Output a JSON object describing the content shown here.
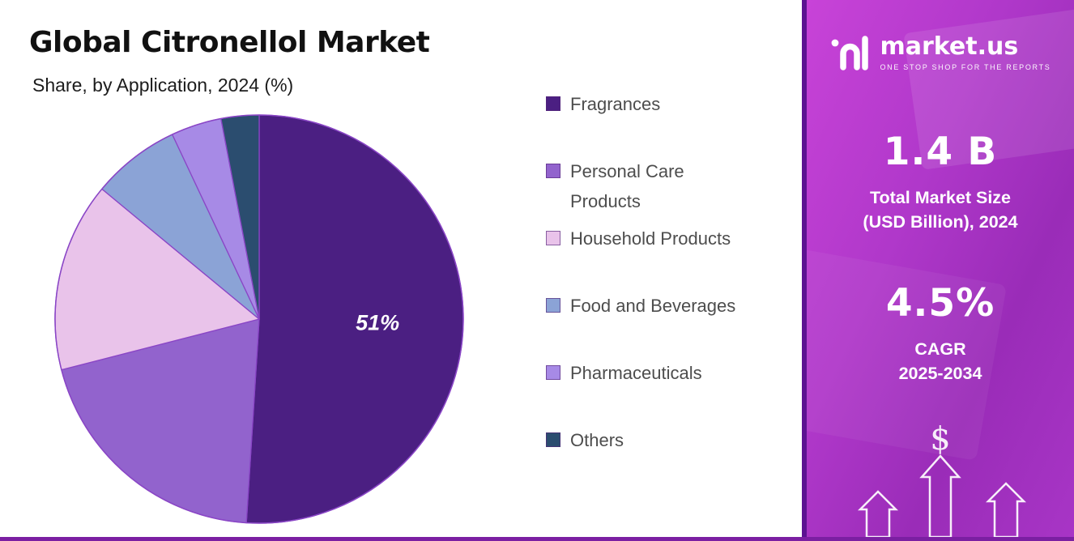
{
  "header": {
    "title": "Global Citronellol Market",
    "subtitle": "Share, by Application, 2024 (%)"
  },
  "chart_data": {
    "type": "pie",
    "title": "Global Citronellol Market",
    "subtitle": "Share, by Application, 2024 (%)",
    "unit": "%",
    "direction": "clockwise",
    "start_angle_deg": 0,
    "legend_position": "right",
    "slices": [
      {
        "label": "Fragrances",
        "value": 51,
        "color": "#4b1f82",
        "callout": "51%"
      },
      {
        "label": "Personal Care Products",
        "value": 20,
        "color": "#9263cd"
      },
      {
        "label": "Household Products",
        "value": 15,
        "color": "#e9c3ea"
      },
      {
        "label": "Food and Beverages",
        "value": 7,
        "color": "#8ba3d6"
      },
      {
        "label": "Pharmaceuticals",
        "value": 4,
        "color": "#a78ae6"
      },
      {
        "label": "Others",
        "value": 3,
        "color": "#2b4d6f"
      }
    ],
    "style": {
      "slice_stroke": "#8a46c6",
      "callout_color": "#ffffff"
    }
  },
  "sidebar": {
    "brand": {
      "name": "market.us",
      "tagline": "ONE STOP SHOP FOR THE REPORTS"
    },
    "stats": [
      {
        "value": "1.4 B",
        "label1": "Total Market Size",
        "label2": "(USD Billion), 2024"
      },
      {
        "value": "4.5%",
        "label1": "CAGR",
        "label2": "2025-2034"
      }
    ]
  },
  "colors": {
    "bottom_bar": "#7b1fa2",
    "panel_gradient_start": "#c843d8",
    "panel_gradient_end": "#9a2cb8",
    "legend_text": "#4d4d4d",
    "title_text": "#111111"
  }
}
